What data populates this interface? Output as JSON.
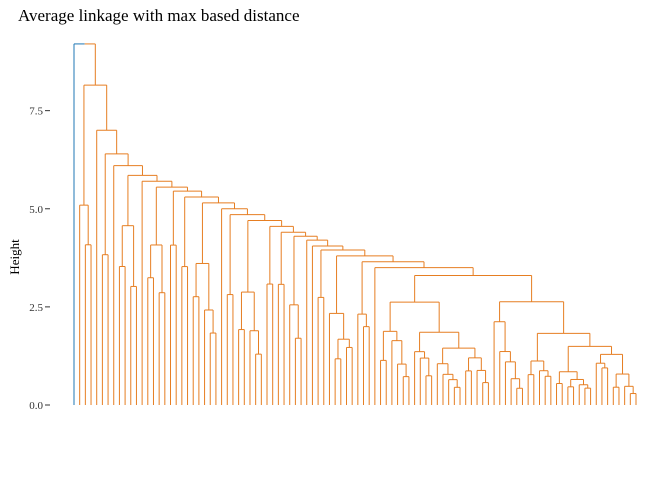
{
  "chart_data": {
    "type": "dendrogram",
    "title": "Average linkage with max based distance",
    "xlabel": "",
    "ylabel": "Height",
    "ylim": [
      0,
      9.3
    ],
    "yticks": [
      0.0,
      2.5,
      5.0,
      7.5
    ],
    "ytick_labels": [
      "0.0",
      "2.5",
      "5.0",
      "7.5"
    ],
    "grid": false,
    "leaf_count": 100,
    "root_height": 9.2,
    "clusters": [
      {
        "name": "",
        "color": "#1f77b4",
        "leaves": 1
      },
      {
        "name": "",
        "color": "#e67e22",
        "leaves": 99
      }
    ],
    "colors": {
      "outlier_branch": "#1f77b4",
      "main_branch": "#e67e22"
    }
  }
}
